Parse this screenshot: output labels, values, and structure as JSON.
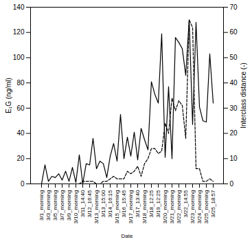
{
  "chart_data": {
    "type": "line",
    "x_label": "Date",
    "y_label": "E₁G (ng/ml)",
    "y2_label": "Interclass distance (-)",
    "categories": [
      "3/1_morning",
      null,
      "3/3_morning",
      null,
      "3/5_morning",
      null,
      "3/7_morning",
      null,
      "3/9_morning",
      null,
      "3/10_morning",
      null,
      "3/11_14:40",
      null,
      "3/12_16:45",
      null,
      "3/13_morning",
      null,
      "3/13_15:00",
      null,
      "3/14_16:15",
      null,
      "3/15_morning",
      null,
      "3/16_15:45",
      null,
      "3/17_morning",
      null,
      "3/17_13:40",
      null,
      "3/18_morning",
      null,
      "3/18_12:25",
      null,
      "3/19_12:25",
      null,
      "3/20_morning",
      null,
      "3/21_morning",
      null,
      "3/22_morning",
      null,
      "3/22_14:55",
      null,
      "3/23_morning",
      null,
      "3/24_morning",
      null,
      "3/25_morning",
      null,
      "3/25_18:57"
    ],
    "series": [
      {
        "name": "E₁G",
        "color": "#000000",
        "line_style": "solid",
        "values": [
          0,
          15,
          2,
          6,
          5,
          8,
          3,
          10,
          2,
          13,
          1,
          23,
          0,
          16,
          15,
          36,
          12,
          18,
          16,
          5,
          22,
          32,
          18,
          55,
          20,
          37,
          22,
          41,
          19,
          44,
          35,
          27,
          81,
          71,
          64,
          119,
          21,
          77,
          20,
          116,
          112,
          107,
          86,
          130,
          47,
          128,
          61,
          50,
          49,
          103,
          64
        ]
      },
      {
        "name": "Interclass distance",
        "color": "#000000",
        "line_style": "dashed",
        "axis": "y2",
        "values": [
          0,
          0,
          0,
          0,
          0,
          0,
          0,
          0,
          0,
          0,
          0,
          0,
          1,
          1,
          1,
          1,
          0,
          0,
          1,
          1,
          2,
          3,
          2,
          2,
          2,
          5,
          4,
          5,
          7,
          3,
          8,
          10,
          14,
          14,
          12,
          13,
          24,
          20,
          34,
          29,
          33,
          31,
          18,
          65,
          62,
          6,
          6,
          1,
          1,
          2,
          1
        ]
      }
    ],
    "ylim": [
      0,
      140
    ],
    "yticks": [
      0,
      20,
      40,
      60,
      80,
      100,
      120,
      140
    ],
    "y2lim": [
      0,
      70
    ],
    "y2ticks": [
      0,
      10,
      20,
      30,
      40,
      50,
      60,
      70
    ],
    "grid": false
  }
}
